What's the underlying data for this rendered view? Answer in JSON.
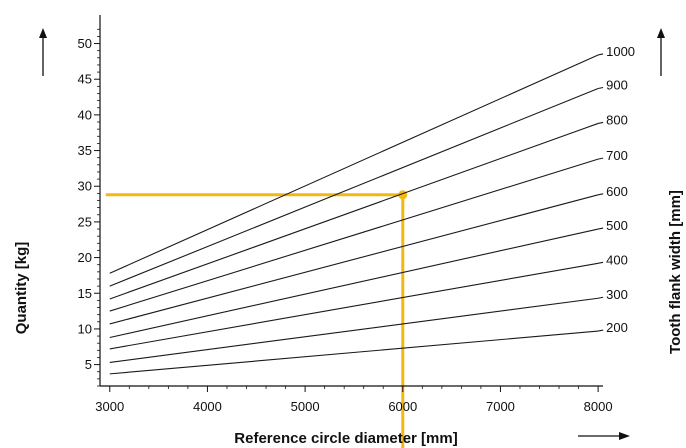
{
  "chart_data": {
    "type": "line",
    "xlabel": "Reference circle diameter [mm]",
    "ylabel": "Quantity [kg]",
    "y2label": "Tooth flank width  [mm]",
    "xlim": [
      2900,
      8050
    ],
    "ylim": [
      2,
      54
    ],
    "xticks": [
      3000,
      4000,
      5000,
      6000,
      7000,
      8000
    ],
    "yticks": [
      5,
      10,
      15,
      20,
      25,
      30,
      35,
      40,
      45,
      50
    ],
    "x": [
      3000,
      8000
    ],
    "series": [
      {
        "name": "200",
        "values": [
          3.7,
          9.7
        ]
      },
      {
        "name": "300",
        "values": [
          5.3,
          14.3
        ]
      },
      {
        "name": "400",
        "values": [
          7.2,
          19.2
        ]
      },
      {
        "name": "500",
        "values": [
          8.8,
          24.0
        ]
      },
      {
        "name": "600",
        "values": [
          10.7,
          28.8
        ]
      },
      {
        "name": "700",
        "values": [
          12.5,
          33.8
        ]
      },
      {
        "name": "800",
        "values": [
          14.2,
          38.8
        ]
      },
      {
        "name": "900",
        "values": [
          16.0,
          43.7
        ]
      },
      {
        "name": "1000",
        "values": [
          17.8,
          48.4
        ]
      }
    ],
    "example": {
      "x": 6000,
      "y": 28.8,
      "color": "#f5b80f"
    },
    "colors": {
      "series": "#1a1a1a",
      "axis": "#111111",
      "highlight": "#f5b80f"
    }
  }
}
